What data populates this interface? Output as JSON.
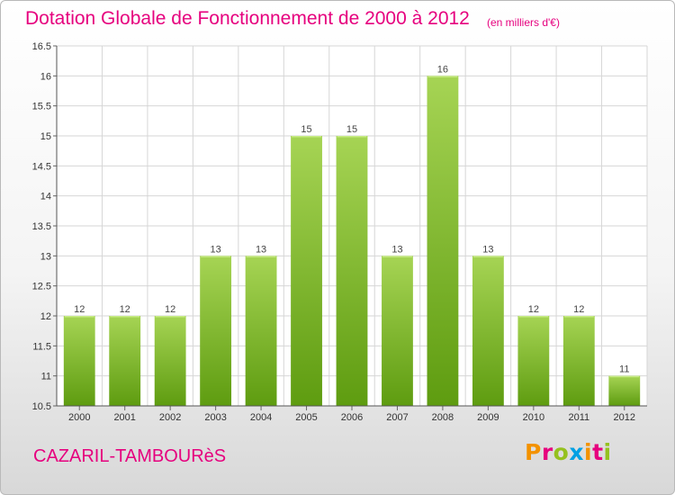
{
  "header": {
    "title": "Dotation Globale de Fonctionnement de 2000 à 2012",
    "subtitle": "(en milliers d'€)"
  },
  "footer": {
    "commune": "CAZARIL-TAMBOURèS",
    "brand": "Proxiti",
    "brand_colors": [
      "#f39200",
      "#e6007e",
      "#95c11f",
      "#00a0e3",
      "#f39200",
      "#e6007e",
      "#95c11f"
    ]
  },
  "colors": {
    "bar_light": "#a6d454",
    "bar_dark": "#5e9c10",
    "accent": "#e6007e"
  },
  "chart_data": {
    "type": "bar",
    "title": "Dotation Globale de Fonctionnement de 2000 à 2012",
    "subtitle": "(en milliers d'€)",
    "categories": [
      "2000",
      "2001",
      "2002",
      "2003",
      "2004",
      "2005",
      "2006",
      "2007",
      "2008",
      "2009",
      "2010",
      "2011",
      "2012"
    ],
    "values": [
      12,
      12,
      12,
      13,
      13,
      15,
      15,
      13,
      16,
      13,
      12,
      12,
      11
    ],
    "data_labels": [
      "12",
      "12",
      "12",
      "13",
      "13",
      "15",
      "15",
      "13",
      "16",
      "13",
      "12",
      "12",
      "11"
    ],
    "ylim": [
      10.5,
      16.5
    ],
    "yticks": [
      10.5,
      11,
      11.5,
      12,
      12.5,
      13,
      13.5,
      14,
      14.5,
      15,
      15.5,
      16,
      16.5
    ],
    "ytick_labels": [
      "10.5",
      "11",
      "11.5",
      "12",
      "12.5",
      "13",
      "13.5",
      "14",
      "14.5",
      "15",
      "15.5",
      "16",
      "16.5"
    ],
    "grid": true
  }
}
